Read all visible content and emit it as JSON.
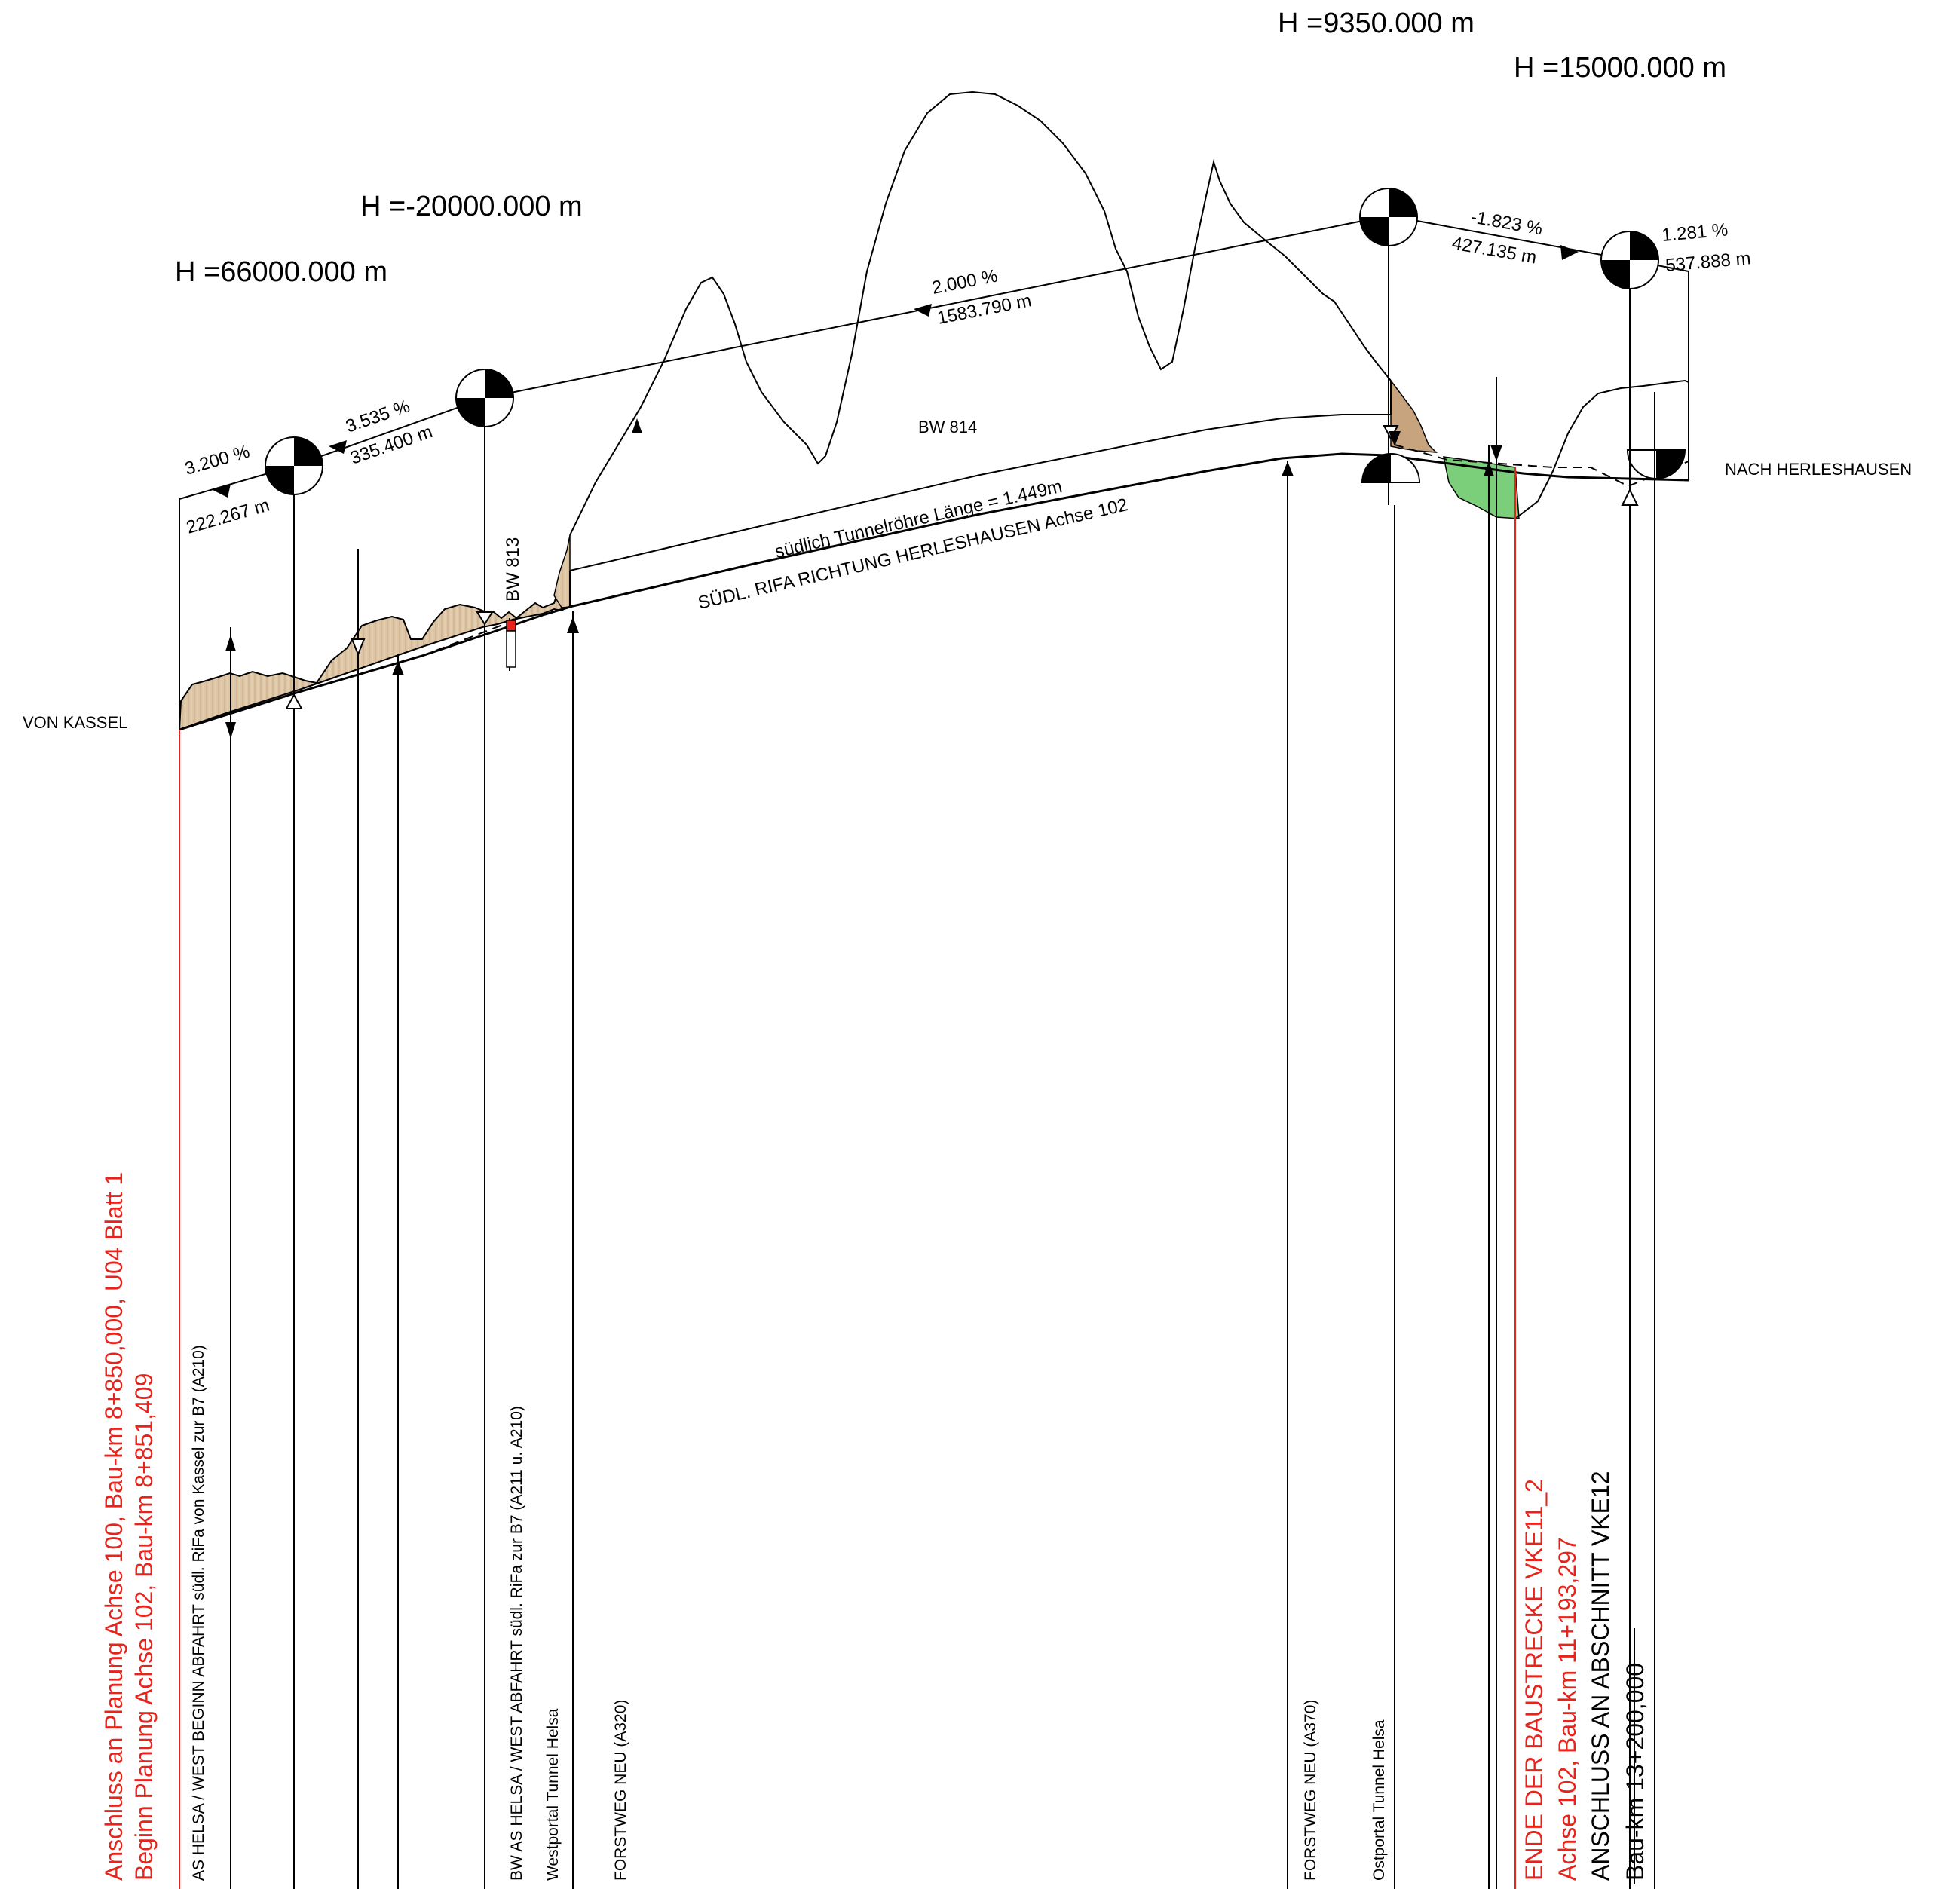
{
  "radii": {
    "r1": "H =66000.000 m",
    "r2": "H =-20000.000 m",
    "r3": "H =9350.000 m",
    "r4": "H =15000.000 m"
  },
  "gradients": {
    "g1_pct": "3.200 %",
    "g1_len": "222.267 m",
    "g2_pct": "3.535 %",
    "g2_len": "335.400 m",
    "g3_pct": "2.000 %",
    "g3_len": "1583.790 m",
    "g4_pct": "-1.823 %",
    "g4_len": "427.135 m",
    "g5_pct": "1.281 %",
    "g5_len": "537.888 m"
  },
  "structures": {
    "bw814": "BW 814",
    "bw813": "BW 813",
    "tunnel": "südlich Tunnelröhre Länge = 1.449m",
    "axis": "SÜDL. RIFA RICHTUNG HERLESHAUSEN Achse 102"
  },
  "directions": {
    "from": "VON KASSEL",
    "to": "NACH HERLESHAUSEN"
  },
  "stations": {
    "start_line1": "Anschluss an Planung Achse 100, Bau-km 8+850,000, U04 Blatt 1",
    "start_line2": "Beginn Planung Achse 102, Bau-km 8+851,409",
    "s1": "AS HELSA / WEST BEGINN ABFAHRT südl. RiFa von Kassel zur B7 (A210)",
    "s2": "BW AS HELSA / WEST ABFAHRT südl. RiFa zur B7 (A211 u. A210)",
    "s3": "Westportal Tunnel Helsa",
    "s4": "FORSTWEG NEU (A320)",
    "s5": "FORSTWEG NEU (A370)",
    "s6": "Ostportal Tunnel Helsa",
    "end_line1": "ENDE DER BAUSTRECKE VKE11_2",
    "end_line2": "Achse 102, Bau-km 11+193,297",
    "end_line3": "ANSCHLUSS AN ABSCHNITT VKE12",
    "end_line4": "Bau-km 13+200,000"
  },
  "colors": {
    "red": "#e8231c",
    "cut": "#c8a47e",
    "fill": "#7ccf7a"
  }
}
